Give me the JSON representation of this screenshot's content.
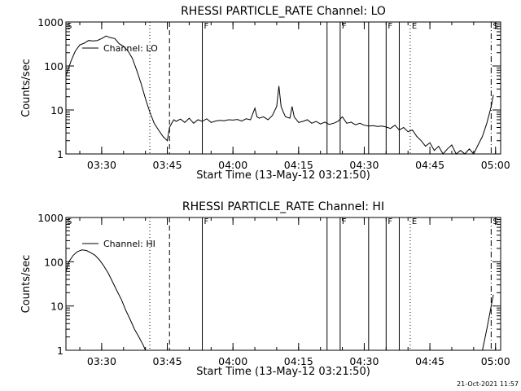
{
  "timestamp": "21-Oct-2021 11:57",
  "chart_data": [
    {
      "type": "line",
      "title": "RHESSI PARTICLE_RATE Channel: LO",
      "xlabel": "Start Time (13-May-12 03:21:50)",
      "ylabel": "Counts/sec",
      "yscale": "log",
      "ylim": [
        1,
        1000
      ],
      "xlim": [
        "03:21:50",
        "05:01:10"
      ],
      "x_ticks": [
        "03:30",
        "03:45",
        "04:00",
        "04:15",
        "04:30",
        "04:45",
        "05:00"
      ],
      "y_ticks": [
        "1",
        "10",
        "100",
        "1000"
      ],
      "legend": "Channel: LO",
      "legend_position": "top-left",
      "series": [
        {
          "name": "Channel: LO",
          "points": [
            [
              "03:21:50",
              60
            ],
            [
              "03:23:00",
              130
            ],
            [
              "03:24:00",
              220
            ],
            [
              "03:25:00",
              300
            ],
            [
              "03:26:00",
              330
            ],
            [
              "03:27:00",
              380
            ],
            [
              "03:28:00",
              370
            ],
            [
              "03:29:00",
              380
            ],
            [
              "03:30:00",
              420
            ],
            [
              "03:31:00",
              480
            ],
            [
              "03:32:00",
              440
            ],
            [
              "03:33:00",
              420
            ],
            [
              "03:34:00",
              320
            ],
            [
              "03:35:00",
              280
            ],
            [
              "03:36:00",
              220
            ],
            [
              "03:37:00",
              150
            ],
            [
              "03:38:00",
              80
            ],
            [
              "03:39:00",
              40
            ],
            [
              "03:40:00",
              18
            ],
            [
              "03:41:00",
              9
            ],
            [
              "03:42:00",
              5
            ],
            [
              "03:43:00",
              3.5
            ],
            [
              "03:44:00",
              2.5
            ],
            [
              "03:45:00",
              2
            ],
            [
              "03:45:30",
              4
            ],
            [
              "03:46:00",
              5
            ],
            [
              "03:46:30",
              6
            ],
            [
              "03:47:00",
              5.5
            ],
            [
              "03:48:00",
              6.2
            ],
            [
              "03:49:00",
              5.2
            ],
            [
              "03:50:00",
              6.5
            ],
            [
              "03:51:00",
              5
            ],
            [
              "03:52:00",
              6
            ],
            [
              "03:53:00",
              5.5
            ],
            [
              "03:54:00",
              6.3
            ],
            [
              "03:55:00",
              5.2
            ],
            [
              "03:56:00",
              5.6
            ],
            [
              "03:57:00",
              5.8
            ],
            [
              "03:58:00",
              5.7
            ],
            [
              "03:59:00",
              6
            ],
            [
              "04:00:00",
              5.9
            ],
            [
              "04:01:00",
              6.1
            ],
            [
              "04:02:00",
              5.6
            ],
            [
              "04:03:00",
              6.3
            ],
            [
              "04:04:00",
              6
            ],
            [
              "04:05:00",
              11
            ],
            [
              "04:05:30",
              7
            ],
            [
              "04:06:00",
              6.5
            ],
            [
              "04:07:00",
              7
            ],
            [
              "04:08:00",
              6
            ],
            [
              "04:09:00",
              7.5
            ],
            [
              "04:10:00",
              12
            ],
            [
              "04:10:30",
              35
            ],
            [
              "04:11:00",
              12
            ],
            [
              "04:11:30",
              9
            ],
            [
              "04:12:00",
              7
            ],
            [
              "04:13:00",
              6.5
            ],
            [
              "04:13:30",
              12
            ],
            [
              "04:14:00",
              7
            ],
            [
              "04:15:00",
              5.2
            ],
            [
              "04:16:00",
              5.5
            ],
            [
              "04:17:00",
              6
            ],
            [
              "04:18:00",
              5
            ],
            [
              "04:19:00",
              5.5
            ],
            [
              "04:20:00",
              4.8
            ],
            [
              "04:21:00",
              5.3
            ],
            [
              "04:22:00",
              4.7
            ],
            [
              "04:23:00",
              5
            ],
            [
              "04:24:00",
              5.5
            ],
            [
              "04:25:00",
              7
            ],
            [
              "04:26:00",
              5
            ],
            [
              "04:27:00",
              5.3
            ],
            [
              "04:28:00",
              4.6
            ],
            [
              "04:29:00",
              5
            ],
            [
              "04:30:00",
              4.5
            ],
            [
              "04:31:00",
              4.3
            ],
            [
              "04:32:00",
              4.4
            ],
            [
              "04:33:00",
              4.2
            ],
            [
              "04:34:00",
              4.3
            ],
            [
              "04:35:00",
              4.1
            ],
            [
              "04:36:00",
              3.8
            ],
            [
              "04:37:00",
              4.5
            ],
            [
              "04:38:00",
              3.5
            ],
            [
              "04:39:00",
              4
            ],
            [
              "04:40:00",
              3.2
            ],
            [
              "04:41:00",
              3.5
            ],
            [
              "04:42:00",
              2.5
            ],
            [
              "04:43:00",
              2
            ],
            [
              "04:44:00",
              1.5
            ],
            [
              "04:45:00",
              1.8
            ],
            [
              "04:46:00",
              1.2
            ],
            [
              "04:47:00",
              1.5
            ],
            [
              "04:48:00",
              1
            ],
            [
              "04:49:00",
              1.3
            ],
            [
              "04:50:00",
              1.6
            ],
            [
              "04:51:00",
              1
            ],
            [
              "04:52:00",
              1.2
            ],
            [
              "04:53:00",
              1
            ],
            [
              "04:54:00",
              1.3
            ],
            [
              "04:55:00",
              1
            ],
            [
              "04:56:00",
              1.6
            ],
            [
              "04:57:00",
              2.5
            ],
            [
              "04:58:00",
              5
            ],
            [
              "04:59:00",
              12
            ],
            [
              "04:59:30",
              22
            ]
          ]
        }
      ]
    },
    {
      "type": "line",
      "title": "RHESSI PARTICLE_RATE Channel: HI",
      "xlabel": "Start Time (13-May-12 03:21:50)",
      "ylabel": "Counts/sec",
      "yscale": "log",
      "ylim": [
        1,
        1000
      ],
      "xlim": [
        "03:21:50",
        "05:01:10"
      ],
      "x_ticks": [
        "03:30",
        "03:45",
        "04:00",
        "04:15",
        "04:30",
        "04:45",
        "05:00"
      ],
      "y_ticks": [
        "1",
        "10",
        "100",
        "1000"
      ],
      "legend": "Channel: HI",
      "legend_position": "top-left",
      "series": [
        {
          "name": "Channel: HI",
          "points": [
            [
              "03:21:50",
              60
            ],
            [
              "03:22:30",
              100
            ],
            [
              "03:23:30",
              140
            ],
            [
              "03:24:30",
              170
            ],
            [
              "03:25:30",
              185
            ],
            [
              "03:26:30",
              180
            ],
            [
              "03:27:30",
              160
            ],
            [
              "03:28:30",
              140
            ],
            [
              "03:29:30",
              110
            ],
            [
              "03:30:30",
              80
            ],
            [
              "03:31:30",
              55
            ],
            [
              "03:32:30",
              35
            ],
            [
              "03:33:30",
              22
            ],
            [
              "03:34:30",
              14
            ],
            [
              "03:35:30",
              8
            ],
            [
              "03:36:30",
              5
            ],
            [
              "03:37:30",
              3
            ],
            [
              "03:38:30",
              2
            ],
            [
              "03:39:30",
              1.3
            ],
            [
              "03:40:00",
              1
            ]
          ]
        },
        {
          "name": "",
          "points": [
            [
              "04:57:00",
              1
            ],
            [
              "04:58:00",
              3
            ],
            [
              "04:59:00",
              10
            ],
            [
              "04:59:30",
              18
            ]
          ]
        }
      ]
    }
  ],
  "event_lines": {
    "labels": [
      "S",
      "F",
      "F",
      "F",
      "E",
      "S"
    ],
    "markers": [
      {
        "time": "03:41:00",
        "style": "dotted"
      },
      {
        "time": "03:45:30",
        "style": "dashed"
      },
      {
        "time": "03:53:00",
        "style": "solid",
        "label": "F"
      },
      {
        "time": "04:21:30",
        "style": "solid"
      },
      {
        "time": "04:24:30",
        "style": "solid",
        "label": "F"
      },
      {
        "time": "04:31:00",
        "style": "solid"
      },
      {
        "time": "04:35:00",
        "style": "solid",
        "label": "F"
      },
      {
        "time": "04:38:00",
        "style": "solid"
      },
      {
        "time": "04:40:30",
        "style": "dotted",
        "label": "E"
      },
      {
        "time": "04:59:00",
        "style": "dashdot",
        "label": "S"
      }
    ],
    "start_label": "S"
  }
}
